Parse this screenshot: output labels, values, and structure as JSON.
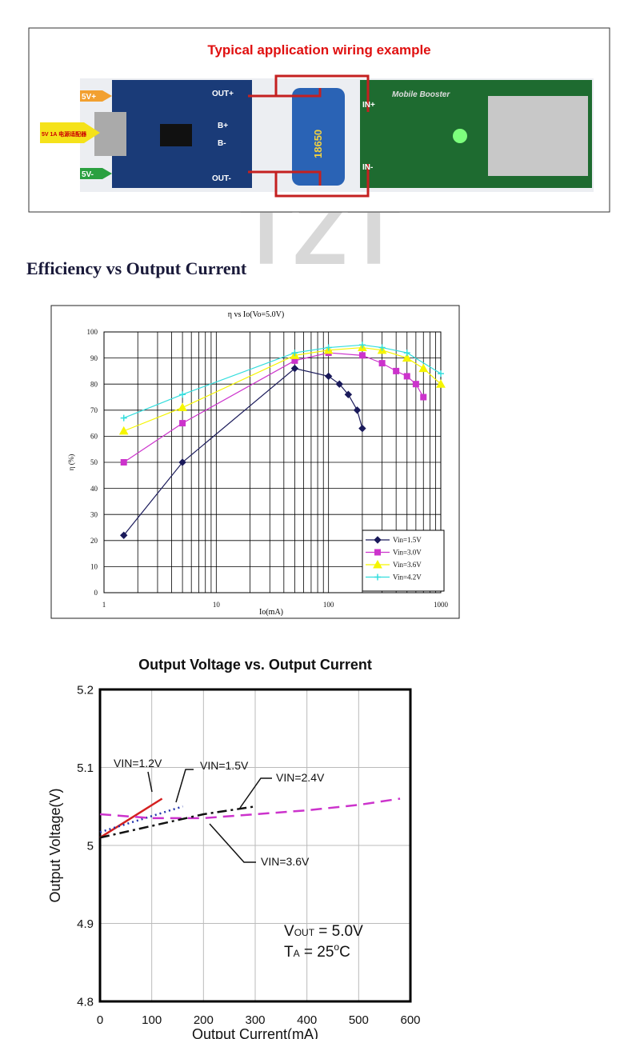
{
  "wiring": {
    "title": "Typical application wiring example",
    "labels": [
      "5V+",
      "5V 1A 电源适配器",
      "5V-",
      "OUT+",
      "B+",
      "B-",
      "OUT-",
      "18650",
      "Mobile Booster",
      "IN+",
      "IN-"
    ]
  },
  "watermark": "TZT",
  "heading": "Efficiency vs Output Current",
  "chart_data": [
    {
      "type": "line",
      "title": "η vs Io(Vo=5.0V)",
      "x_label": "Io(mA)",
      "y_label": "η (%)",
      "xscale": "log",
      "xlim": [
        1,
        1000
      ],
      "xticks": [
        1,
        10,
        100,
        1000
      ],
      "ylim": [
        0,
        100
      ],
      "yticks": [
        0,
        10,
        20,
        30,
        40,
        50,
        60,
        70,
        80,
        90,
        100
      ],
      "grid": true,
      "legend": "bottom-right",
      "series": [
        {
          "name": "Vin=1.5V",
          "color": "#1a1a5a",
          "marker": "diamond",
          "x": [
            1.5,
            5,
            50,
            100,
            125,
            150,
            180,
            200
          ],
          "values": [
            22,
            50,
            86,
            83,
            80,
            76,
            70,
            63
          ]
        },
        {
          "name": "Vin=3.0V",
          "color": "#cc33cc",
          "marker": "square",
          "x": [
            1.5,
            5,
            50,
            100,
            200,
            300,
            400,
            500,
            600,
            700
          ],
          "values": [
            50,
            65,
            89,
            92,
            91,
            88,
            85,
            83,
            80,
            75
          ]
        },
        {
          "name": "Vin=3.6V",
          "color": "#f5f500",
          "marker": "triangle",
          "x": [
            1.5,
            5,
            50,
            100,
            200,
            300,
            500,
            700,
            1000
          ],
          "values": [
            62,
            71,
            91,
            93,
            94,
            93,
            90,
            86,
            80
          ]
        },
        {
          "name": "Vin=4.2V",
          "color": "#33dddd",
          "marker": "cross",
          "x": [
            1.5,
            5,
            50,
            100,
            200,
            300,
            500,
            1000
          ],
          "values": [
            67,
            76,
            92,
            94,
            95,
            94,
            92,
            84
          ]
        }
      ]
    },
    {
      "type": "line",
      "title": "Output Voltage vs. Output Current",
      "x_label": "Output Current(mA)",
      "y_label": "Output Voltage(V)",
      "xlim": [
        0,
        600
      ],
      "xticks": [
        0,
        100,
        200,
        300,
        400,
        500,
        600
      ],
      "ylim": [
        4.8,
        5.2
      ],
      "yticks": [
        4.8,
        4.9,
        5,
        5.1,
        5.2
      ],
      "grid": true,
      "series": [
        {
          "name": "VIN=1.2V",
          "color": "#d42020",
          "dash": "solid",
          "x": [
            0,
            120
          ],
          "values": [
            5.01,
            5.06
          ]
        },
        {
          "name": "VIN=1.5V",
          "color": "#2233aa",
          "dash": "dot",
          "x": [
            0,
            160
          ],
          "values": [
            5.017,
            5.05
          ]
        },
        {
          "name": "VIN=2.4V",
          "color": "#cc33cc",
          "dash": "dash",
          "x": [
            0,
            100,
            200,
            300,
            400,
            500,
            580
          ],
          "values": [
            5.04,
            5.035,
            5.035,
            5.04,
            5.045,
            5.052,
            5.06
          ]
        },
        {
          "name": "VIN=3.6V",
          "color": "#111111",
          "dash": "dashdot",
          "x": [
            0,
            100,
            200,
            300
          ],
          "values": [
            5.01,
            5.025,
            5.04,
            5.05
          ]
        }
      ],
      "note": {
        "v": "V",
        "v_sub": "OUT",
        "v_rest": " = 5.0V",
        "t": "T",
        "t_sub": "A",
        "t_rest": " = 25",
        "t_sup": "o",
        "t_end": "C"
      }
    }
  ]
}
